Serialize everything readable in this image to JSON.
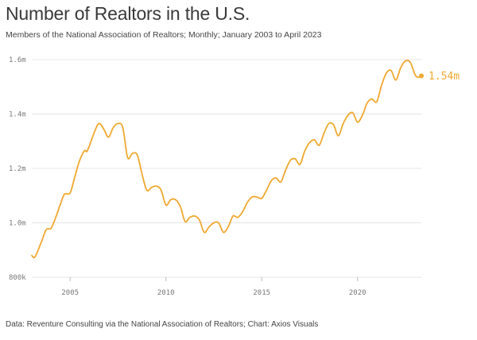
{
  "title": "Number of Realtors in the U.S.",
  "subtitle": "Members of the National Association of Realtors; Monthly; January 2003 to April 2023",
  "source": "Data: Reventure Consulting via the National Association of Realtors; Chart: Axios Visuals",
  "colors": {
    "line": "#f0a830",
    "grid": "#e4e4e4",
    "tick_text": "#777777"
  },
  "chart_data": {
    "type": "line",
    "title": "Number of Realtors in the U.S.",
    "xlabel": "",
    "ylabel": "",
    "grid": true,
    "xlim": [
      2003.0,
      2023.33
    ],
    "ylim": [
      800000,
      1600000
    ],
    "x_ticks": [
      2005,
      2010,
      2015,
      2020
    ],
    "x_tick_labels": [
      "2005",
      "2010",
      "2015",
      "2020"
    ],
    "y_ticks": [
      800000,
      1000000,
      1200000,
      1400000,
      1600000
    ],
    "y_tick_labels": [
      "800k",
      "1.0m",
      "1.2m",
      "1.4m",
      "1.6m"
    ],
    "end_label": "1.54m",
    "series": [
      {
        "x": [
          2003.0,
          2003.17,
          2003.5,
          2003.75,
          2004.0,
          2004.25,
          2004.5,
          2004.7,
          2005.0,
          2005.25,
          2005.5,
          2005.75,
          2005.9,
          2006.25,
          2006.5,
          2006.75,
          2007.0,
          2007.25,
          2007.5,
          2007.75,
          2008.0,
          2008.25,
          2008.5,
          2008.75,
          2009.0,
          2009.25,
          2009.5,
          2009.75,
          2010.0,
          2010.25,
          2010.5,
          2010.75,
          2011.0,
          2011.25,
          2011.5,
          2011.75,
          2012.0,
          2012.25,
          2012.5,
          2012.75,
          2013.0,
          2013.25,
          2013.5,
          2013.75,
          2014.0,
          2014.25,
          2014.5,
          2014.75,
          2015.0,
          2015.25,
          2015.5,
          2015.75,
          2016.0,
          2016.25,
          2016.5,
          2016.75,
          2017.0,
          2017.25,
          2017.5,
          2017.75,
          2018.0,
          2018.25,
          2018.5,
          2018.75,
          2019.0,
          2019.25,
          2019.5,
          2019.75,
          2020.0,
          2020.25,
          2020.5,
          2020.75,
          2021.0,
          2021.25,
          2021.5,
          2021.75,
          2022.0,
          2022.25,
          2022.5,
          2022.75,
          2023.0,
          2023.15,
          2023.33
        ],
        "values": [
          880000,
          875000,
          930000,
          975000,
          980000,
          1020000,
          1070000,
          1105000,
          1110000,
          1170000,
          1230000,
          1265000,
          1265000,
          1330000,
          1365000,
          1345000,
          1315000,
          1350000,
          1365000,
          1350000,
          1240000,
          1255000,
          1250000,
          1180000,
          1120000,
          1130000,
          1135000,
          1120000,
          1065000,
          1085000,
          1085000,
          1060000,
          1005000,
          1020000,
          1025000,
          1010000,
          965000,
          985000,
          1000000,
          1000000,
          965000,
          985000,
          1025000,
          1020000,
          1040000,
          1075000,
          1095000,
          1095000,
          1090000,
          1120000,
          1155000,
          1165000,
          1150000,
          1195000,
          1230000,
          1235000,
          1215000,
          1265000,
          1295000,
          1305000,
          1285000,
          1330000,
          1365000,
          1360000,
          1320000,
          1365000,
          1395000,
          1405000,
          1370000,
          1395000,
          1440000,
          1455000,
          1445000,
          1505000,
          1550000,
          1560000,
          1525000,
          1570000,
          1595000,
          1590000,
          1545000,
          1535000,
          1540000
        ]
      }
    ]
  }
}
